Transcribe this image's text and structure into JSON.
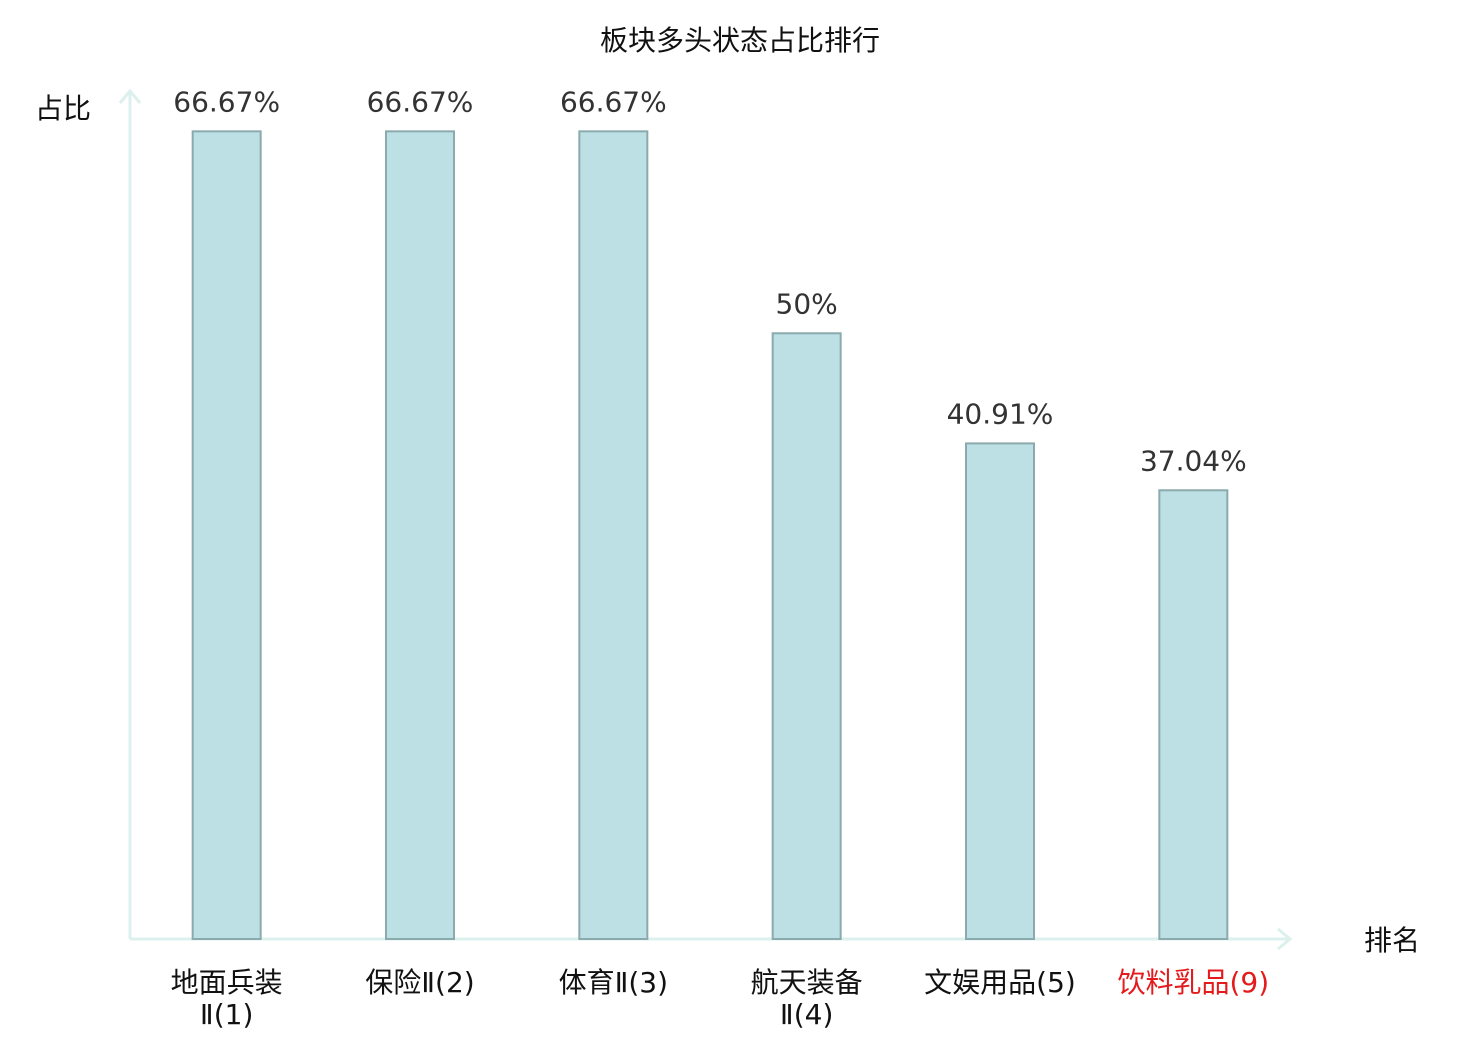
{
  "chart_data": {
    "type": "bar",
    "title": "板块多头状态占比排行",
    "y_label": "占比",
    "x_label": "排名",
    "categories": [
      "地面兵装\nⅡ(1)",
      "保险Ⅱ(2)",
      "体育Ⅱ(3)",
      "航天装备\nⅡ(4)",
      "文娱用品(5)",
      "饮料乳品(9)"
    ],
    "category_label_colors": [
      "#111111",
      "#111111",
      "#111111",
      "#111111",
      "#111111",
      "#e41a1c"
    ],
    "values": [
      66.67,
      66.67,
      66.67,
      50,
      40.91,
      37.04
    ],
    "value_labels": [
      "66.67%",
      "66.67%",
      "66.67%",
      "50%",
      "40.91%",
      "37.04%"
    ],
    "color": "#bce0e3",
    "edge_color": "#8aaaad",
    "axis_color": "#dcf0ed",
    "ylim": [
      0,
      70
    ]
  }
}
